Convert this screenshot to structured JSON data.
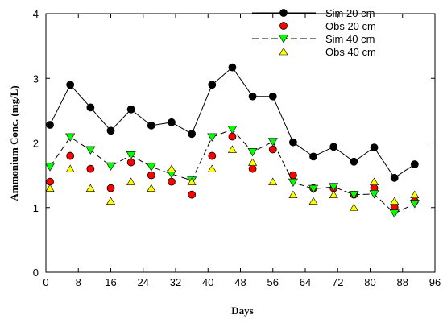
{
  "chart_data": {
    "type": "line",
    "xlabel": "Days",
    "ylabel": "Ammonium Conc. (mg/L)",
    "xlim": [
      0,
      96
    ],
    "ylim": [
      0,
      4
    ],
    "xticks": [
      0,
      8,
      16,
      24,
      32,
      40,
      48,
      56,
      64,
      72,
      80,
      88,
      96
    ],
    "yticks": [
      0,
      1,
      2,
      3,
      4
    ],
    "grid": false,
    "legend_position": "top-right",
    "x": [
      1,
      6,
      11,
      16,
      21,
      26,
      31,
      36,
      41,
      46,
      51,
      56,
      61,
      66,
      71,
      76,
      81,
      86,
      91
    ],
    "series": [
      {
        "name": "Sim 20 cm",
        "style": "solid-line-circle",
        "color": "#000000",
        "values": [
          2.28,
          2.9,
          2.55,
          2.19,
          2.52,
          2.27,
          2.32,
          2.14,
          2.9,
          3.17,
          2.72,
          2.72,
          2.01,
          1.79,
          1.94,
          1.71,
          1.93,
          1.46,
          1.67
        ]
      },
      {
        "name": "Obs 20 cm",
        "style": "marker-circle",
        "color": "#ff0000",
        "values": [
          1.4,
          1.8,
          1.6,
          1.3,
          1.7,
          1.5,
          1.4,
          1.2,
          1.8,
          2.1,
          1.6,
          1.9,
          1.5,
          1.3,
          1.3,
          1.2,
          1.3,
          1.0,
          1.1
        ]
      },
      {
        "name": "Sim 40 cm",
        "style": "dashed-line-triangle-down",
        "color": "#00ff00",
        "values": [
          1.63,
          2.09,
          1.89,
          1.64,
          1.81,
          1.63,
          1.52,
          1.42,
          2.09,
          2.21,
          1.86,
          2.02,
          1.39,
          1.29,
          1.32,
          1.2,
          1.21,
          0.91,
          1.06
        ]
      },
      {
        "name": "Obs 40 cm",
        "style": "marker-triangle-up",
        "color": "#ffff00",
        "values": [
          1.3,
          1.6,
          1.3,
          1.1,
          1.4,
          1.3,
          1.6,
          1.4,
          1.6,
          1.9,
          1.7,
          1.4,
          1.2,
          1.1,
          1.2,
          1.0,
          1.4,
          1.1,
          1.2
        ]
      }
    ]
  }
}
